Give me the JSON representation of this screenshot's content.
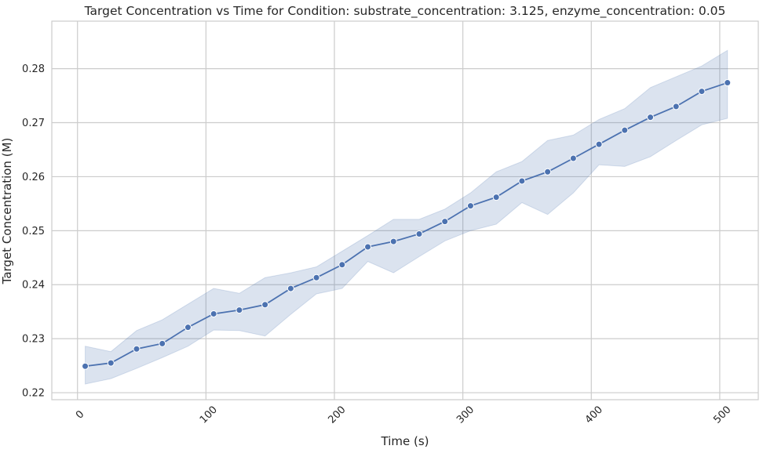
{
  "chart_data": {
    "type": "line",
    "title": "Target Concentration vs Time for Condition: substrate_concentration: 3.125, enzyme_concentration: 0.05",
    "xlabel": "Time (s)",
    "ylabel": "Target Concentration (M)",
    "xlim": [
      -20,
      530
    ],
    "ylim": [
      0.2187,
      0.2888
    ],
    "xticks": [
      0,
      100,
      200,
      300,
      400,
      500
    ],
    "xtick_labels": [
      "0",
      "100",
      "200",
      "300",
      "400",
      "500"
    ],
    "yticks": [
      0.22,
      0.23,
      0.24,
      0.25,
      0.26,
      0.27,
      0.28
    ],
    "ytick_labels": [
      "0.22",
      "0.23",
      "0.24",
      "0.25",
      "0.26",
      "0.27",
      "0.28"
    ],
    "grid": true,
    "colors": {
      "line": "#4c72b0",
      "band": "#4c72b0",
      "grid": "#cccccc",
      "spine": "#cccccc",
      "text": "#262626"
    },
    "series": [
      {
        "x": [
          6,
          26,
          46,
          66,
          86,
          106,
          126,
          146,
          166,
          186,
          206,
          226,
          246,
          266,
          286,
          306,
          326,
          346,
          366,
          386,
          406,
          426,
          446,
          466,
          486,
          506
        ],
        "y": [
          0.2249,
          0.2255,
          0.2281,
          0.2291,
          0.2321,
          0.2346,
          0.2353,
          0.2363,
          0.2393,
          0.2413,
          0.2437,
          0.247,
          0.248,
          0.2494,
          0.2517,
          0.2546,
          0.2562,
          0.2592,
          0.2609,
          0.2634,
          0.266,
          0.2686,
          0.271,
          0.273,
          0.2758,
          0.2774
        ],
        "lower": [
          0.2216,
          0.2226,
          0.2245,
          0.2265,
          0.2286,
          0.2316,
          0.2315,
          0.2305,
          0.2345,
          0.2383,
          0.2393,
          0.2443,
          0.2422,
          0.2452,
          0.2481,
          0.25,
          0.2512,
          0.2552,
          0.253,
          0.257,
          0.2622,
          0.2619,
          0.2637,
          0.2667,
          0.2696,
          0.2708
        ],
        "upper": [
          0.2286,
          0.2276,
          0.2315,
          0.2335,
          0.2364,
          0.2393,
          0.2384,
          0.2413,
          0.2422,
          0.2433,
          0.2462,
          0.2491,
          0.2521,
          0.2521,
          0.254,
          0.257,
          0.2609,
          0.2628,
          0.2667,
          0.2677,
          0.2706,
          0.2726,
          0.2765,
          0.2785,
          0.2805,
          0.2834
        ]
      }
    ]
  }
}
